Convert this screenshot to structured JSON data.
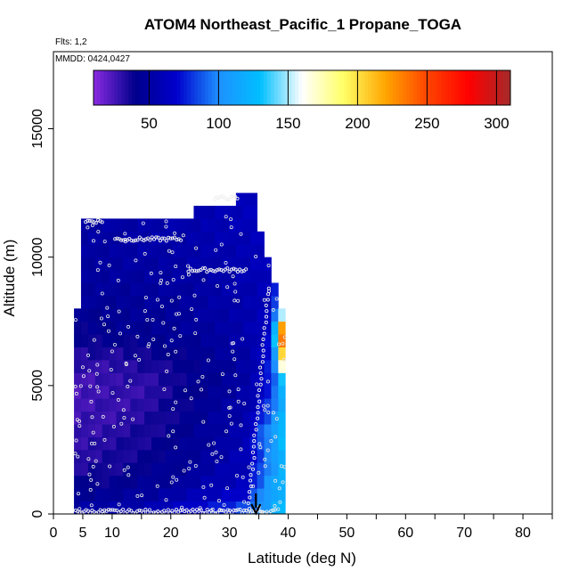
{
  "chart_data": {
    "type": "heatmap",
    "title": "ATOM4 Northeast_Pacific_1 Propane_TOGA",
    "flights_label": "Flts: 1,2",
    "mmdd_label": "MMDD: 0424,0427",
    "xlabel": "Latitude (deg N)",
    "ylabel": "Altitude (m)",
    "xlim": [
      0,
      85
    ],
    "ylim": [
      0,
      18000
    ],
    "x_ticks": [
      0,
      5,
      10,
      20,
      30,
      40,
      50,
      60,
      70,
      80
    ],
    "y_ticks": [
      0,
      5000,
      10000,
      15000
    ],
    "colorbar": {
      "min": 10,
      "max": 310,
      "ticks": [
        50,
        100,
        150,
        200,
        250,
        300
      ],
      "colors": [
        "#8a2be2",
        "#00008b",
        "#0000cd",
        "#1e90ff",
        "#00bfff",
        "#ffffff",
        "#ffff66",
        "#ffa500",
        "#ff4500",
        "#ff0000",
        "#a52a2a"
      ]
    },
    "curtain": {
      "lat_start": 3.5,
      "lat_step": 1.2,
      "alt_step": 500,
      "lat_bins": 30,
      "tops": [
        8000,
        11500,
        11500,
        11500,
        11500,
        11500,
        11500,
        11500,
        11500,
        11500,
        11500,
        11500,
        11500,
        11500,
        11500,
        11500,
        11500,
        12000,
        12000,
        12000,
        12000,
        12000,
        12000,
        12500,
        12500,
        12500,
        11000,
        10000,
        9000,
        8000
      ],
      "profile": {
        "lat_knots": [
          3.5,
          10,
          16,
          22,
          28,
          33,
          35,
          37,
          38.5,
          39.5
        ],
        "alt_knots": [
          0,
          1000,
          2000,
          3000,
          4000,
          5000,
          6000,
          7000,
          8000,
          10000,
          12500
        ],
        "values": [
          [
            55,
            55,
            60,
            70,
            80,
            90,
            105,
            115,
            125,
            130
          ],
          [
            40,
            42,
            45,
            50,
            58,
            65,
            90,
            110,
            120,
            125
          ],
          [
            30,
            35,
            40,
            45,
            52,
            60,
            80,
            100,
            115,
            120
          ],
          [
            30,
            32,
            36,
            42,
            50,
            58,
            85,
            105,
            125,
            135
          ],
          [
            25,
            28,
            32,
            40,
            48,
            55,
            70,
            90,
            110,
            130
          ],
          [
            25,
            28,
            30,
            38,
            45,
            52,
            60,
            80,
            100,
            150
          ],
          [
            30,
            32,
            35,
            40,
            45,
            52,
            60,
            75,
            130,
            260
          ],
          [
            40,
            42,
            44,
            46,
            50,
            55,
            60,
            70,
            220,
            300
          ],
          [
            45,
            45,
            46,
            48,
            52,
            56,
            58,
            62,
            100,
            150
          ],
          [
            50,
            50,
            52,
            52,
            55,
            58,
            60,
            65,
            80,
            90
          ],
          [
            50,
            52,
            55,
            58,
            60,
            62,
            65,
            70,
            75,
            80
          ]
        ]
      }
    },
    "flight_track_annotation": {
      "arrow_lat": 34.5,
      "arrow_alt_top": 800,
      "arrow_alt_bottom": 0
    }
  }
}
